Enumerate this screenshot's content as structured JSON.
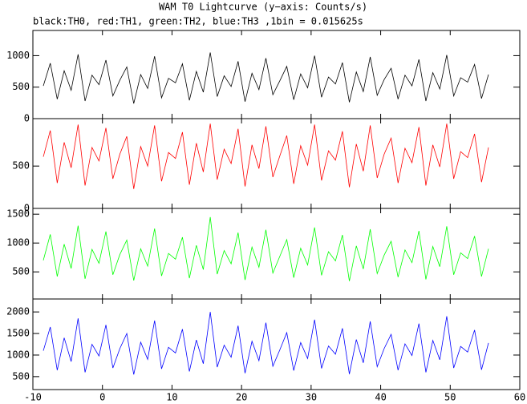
{
  "chart_data": [
    {
      "type": "line",
      "title": "WAM T0 Lightcurve (y−axis: Counts/s)",
      "subtitle": "black:TH0, red:TH1, green:TH2, blue:TH3 ,1bin = 0.015625s",
      "x": [
        -8.5,
        -7.5,
        -6.5,
        -5.5,
        -4.5,
        -3.5,
        -2.5,
        -1.5,
        -0.5,
        0.5,
        1.5,
        2.5,
        3.5,
        4.5,
        5.5,
        6.5,
        7.5,
        8.5,
        9.5,
        10.5,
        11.5,
        12.5,
        13.5,
        14.5,
        15.5,
        16.5,
        17.5,
        18.5,
        19.5,
        20.5,
        21.5,
        22.5,
        23.5,
        24.5,
        25.5,
        26.5,
        27.5,
        28.5,
        29.5,
        30.5,
        31.5,
        32.5,
        33.5,
        34.5,
        35.5,
        36.5,
        37.5,
        38.5,
        39.5,
        40.5,
        41.5,
        42.5,
        43.5,
        44.5,
        45.5,
        46.5,
        47.5,
        48.5,
        49.5,
        50.5,
        51.5,
        52.5,
        53.5,
        54.5,
        55.5
      ],
      "series": [
        {
          "color": "#000000",
          "values": [
            520,
            880,
            310,
            760,
            450,
            1020,
            280,
            690,
            540,
            930,
            360,
            610,
            820,
            240,
            700,
            480,
            990,
            330,
            640,
            570,
            870,
            290,
            750,
            420,
            1050,
            350,
            680,
            510,
            910,
            270,
            720,
            460,
            960,
            380,
            600,
            830,
            300,
            710,
            490,
            1000,
            340,
            660,
            550,
            890,
            260,
            740,
            430,
            980,
            370,
            620,
            800,
            310,
            690,
            520,
            940,
            280,
            730,
            470,
            1010,
            360,
            650,
            580,
            860,
            320,
            700
          ]
        }
      ],
      "xlim": [
        -10,
        60
      ],
      "ylim": [
        0,
        1400
      ],
      "yticks": [
        0,
        500,
        1000
      ]
    },
    {
      "type": "line",
      "x": [
        -8.5,
        -7.5,
        -6.5,
        -5.5,
        -4.5,
        -3.5,
        -2.5,
        -1.5,
        -0.5,
        0.5,
        1.5,
        2.5,
        3.5,
        4.5,
        5.5,
        6.5,
        7.5,
        8.5,
        9.5,
        10.5,
        11.5,
        12.5,
        13.5,
        14.5,
        15.5,
        16.5,
        17.5,
        18.5,
        19.5,
        20.5,
        21.5,
        22.5,
        23.5,
        24.5,
        25.5,
        26.5,
        27.5,
        28.5,
        29.5,
        30.5,
        31.5,
        32.5,
        33.5,
        34.5,
        35.5,
        36.5,
        37.5,
        38.5,
        39.5,
        40.5,
        41.5,
        42.5,
        43.5,
        44.5,
        45.5,
        46.5,
        47.5,
        48.5,
        49.5,
        50.5,
        51.5,
        52.5,
        53.5,
        54.5,
        55.5
      ],
      "series": [
        {
          "color": "#ff0000",
          "values": [
            610,
            920,
            300,
            780,
            480,
            990,
            270,
            720,
            560,
            950,
            350,
            640,
            850,
            230,
            730,
            500,
            980,
            320,
            660,
            590,
            900,
            280,
            770,
            430,
            1000,
            340,
            700,
            530,
            940,
            260,
            750,
            470,
            970,
            370,
            620,
            860,
            290,
            740,
            510,
            990,
            330,
            680,
            570,
            910,
            250,
            760,
            440,
            980,
            360,
            640,
            830,
            300,
            710,
            540,
            960,
            270,
            750,
            490,
            1000,
            350,
            670,
            600,
            880,
            310,
            720
          ]
        }
      ],
      "xlim": [
        -10,
        60
      ],
      "ylim": [
        0,
        1060
      ],
      "yticks": [
        0,
        500
      ]
    },
    {
      "type": "line",
      "x": [
        -8.5,
        -7.5,
        -6.5,
        -5.5,
        -4.5,
        -3.5,
        -2.5,
        -1.5,
        -0.5,
        0.5,
        1.5,
        2.5,
        3.5,
        4.5,
        5.5,
        6.5,
        7.5,
        8.5,
        9.5,
        10.5,
        11.5,
        12.5,
        13.5,
        14.5,
        15.5,
        16.5,
        17.5,
        18.5,
        19.5,
        20.5,
        21.5,
        22.5,
        23.5,
        24.5,
        25.5,
        26.5,
        27.5,
        28.5,
        29.5,
        30.5,
        31.5,
        32.5,
        33.5,
        34.5,
        35.5,
        36.5,
        37.5,
        38.5,
        39.5,
        40.5,
        41.5,
        42.5,
        43.5,
        44.5,
        45.5,
        46.5,
        47.5,
        48.5,
        49.5,
        50.5,
        51.5,
        52.5,
        53.5,
        54.5,
        55.5
      ],
      "series": [
        {
          "color": "#00ff00",
          "values": [
            700,
            1150,
            420,
            980,
            560,
            1300,
            380,
            890,
            650,
            1200,
            450,
            800,
            1050,
            350,
            900,
            600,
            1250,
            430,
            820,
            720,
            1100,
            390,
            960,
            540,
            1450,
            460,
            870,
            640,
            1180,
            360,
            930,
            580,
            1230,
            480,
            770,
            1060,
            400,
            910,
            620,
            1270,
            440,
            850,
            690,
            1140,
            340,
            950,
            550,
            1240,
            470,
            790,
            1030,
            410,
            880,
            660,
            1210,
            370,
            940,
            590,
            1290,
            450,
            830,
            730,
            1120,
            420,
            900
          ]
        }
      ],
      "xlim": [
        -10,
        60
      ],
      "ylim": [
        30,
        1600
      ],
      "yticks": [
        500,
        1000,
        1500
      ]
    },
    {
      "type": "line",
      "x": [
        -8.5,
        -7.5,
        -6.5,
        -5.5,
        -4.5,
        -3.5,
        -2.5,
        -1.5,
        -0.5,
        0.5,
        1.5,
        2.5,
        3.5,
        4.5,
        5.5,
        6.5,
        7.5,
        8.5,
        9.5,
        10.5,
        11.5,
        12.5,
        13.5,
        14.5,
        15.5,
        16.5,
        17.5,
        18.5,
        19.5,
        20.5,
        21.5,
        22.5,
        23.5,
        24.5,
        25.5,
        26.5,
        27.5,
        28.5,
        29.5,
        30.5,
        31.5,
        32.5,
        33.5,
        34.5,
        35.5,
        36.5,
        37.5,
        38.5,
        39.5,
        40.5,
        41.5,
        42.5,
        43.5,
        44.5,
        45.5,
        46.5,
        47.5,
        48.5,
        49.5,
        50.5,
        51.5,
        52.5,
        53.5,
        54.5,
        55.5
      ],
      "series": [
        {
          "color": "#0000ff",
          "values": [
            1100,
            1650,
            650,
            1400,
            850,
            1850,
            600,
            1250,
            980,
            1700,
            700,
            1150,
            1500,
            550,
            1300,
            900,
            1800,
            680,
            1180,
            1050,
            1600,
            620,
            1350,
            800,
            2000,
            720,
            1230,
            950,
            1680,
            580,
            1320,
            870,
            1750,
            740,
            1120,
            1520,
            640,
            1290,
            920,
            1820,
            690,
            1210,
            1020,
            1620,
            560,
            1360,
            820,
            1780,
            730,
            1150,
            1480,
            650,
            1260,
            990,
            1730,
            600,
            1340,
            890,
            1900,
            700,
            1200,
            1070,
            1580,
            660,
            1280
          ]
        }
      ],
      "xlim": [
        -10,
        60
      ],
      "ylim": [
        200,
        2300
      ],
      "yticks": [
        500,
        1000,
        1500,
        2000
      ],
      "xticks": [
        -10,
        0,
        10,
        20,
        30,
        40,
        50,
        60
      ]
    }
  ]
}
